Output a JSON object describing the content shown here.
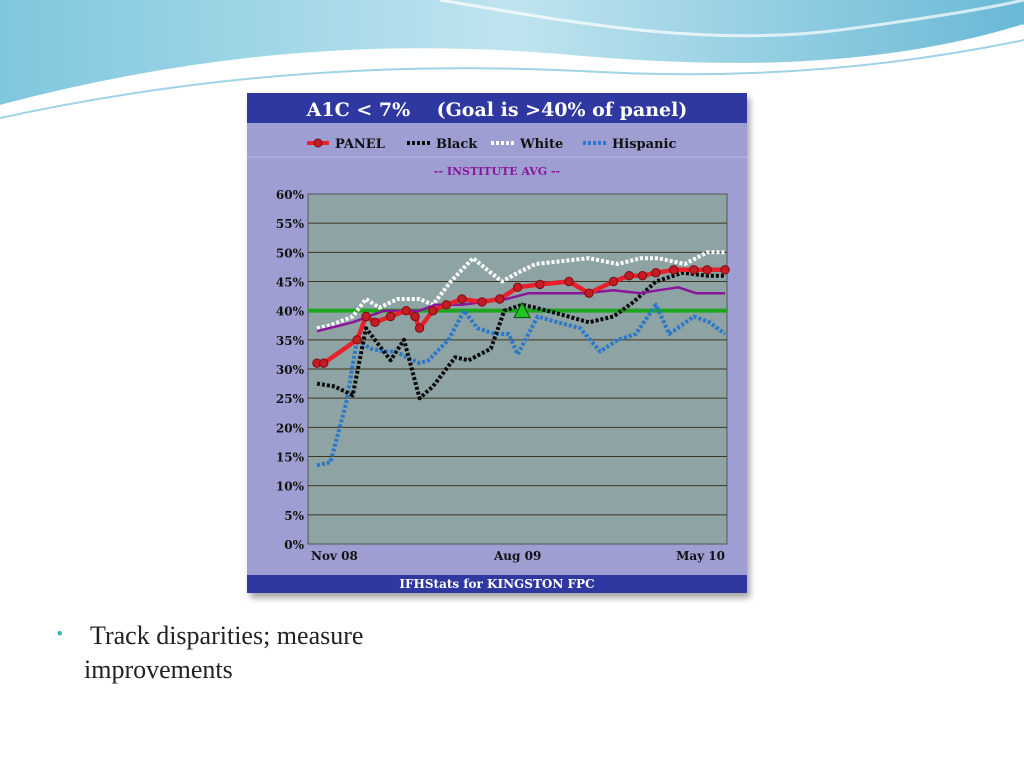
{
  "slide": {
    "bullet_marker": "•",
    "bullet_text": "Track disparities; measure improvements"
  },
  "colors": {
    "banner": "#2f38a0",
    "card_bg": "#9e9ed2",
    "plot_bg": "#8ea3a4",
    "panel": "#e8202a",
    "black": "#0a0a0a",
    "white": "#ffffff",
    "hispanic": "#2a78cc",
    "institute": "#8a159a",
    "goal": "#1ea51e",
    "accent": "#3fb2c8"
  },
  "chart_data": {
    "type": "line",
    "title": "A1C < 7%    (Goal is >40% of panel)",
    "footer": "IFHStats for KINGSTON FPC",
    "institute_label": "-- INSTITUTE AVG --",
    "xlabel": "",
    "ylabel": "",
    "ylim": [
      0,
      60
    ],
    "y_ticks": [
      "0%",
      "5%",
      "10%",
      "15%",
      "20%",
      "25%",
      "30%",
      "35%",
      "40%",
      "45%",
      "50%",
      "55%",
      "60%"
    ],
    "x_ticks": [
      "Nov 08",
      "Aug 09",
      "May 10"
    ],
    "x_tick_index": [
      0,
      9,
      18
    ],
    "x_range": [
      0,
      18.3
    ],
    "grid": true,
    "legend_position": "top",
    "goal_line": 40,
    "goal_marker": {
      "x": 9.2,
      "y": 40
    },
    "series": [
      {
        "name": "PANEL",
        "style": "solid-markers",
        "x": [
          0,
          0.3,
          1.8,
          2.2,
          2.6,
          3.3,
          4.0,
          4.4,
          4.6,
          5.2,
          5.8,
          6.5,
          7.4,
          8.2,
          9.0,
          10.0,
          11.3,
          12.2,
          13.3,
          14.0,
          14.6,
          15.2,
          16.0,
          16.9,
          17.5,
          18.3
        ],
        "y": [
          31,
          31,
          35,
          39,
          38,
          39,
          40,
          39,
          37,
          40,
          41,
          42,
          41.5,
          42,
          44,
          44.5,
          45,
          43,
          45,
          46,
          46,
          46.5,
          47,
          47,
          47,
          47
        ]
      },
      {
        "name": "Black",
        "style": "dotted",
        "x": [
          0,
          0.8,
          1.6,
          2.2,
          3.3,
          3.9,
          4.6,
          5.2,
          6.2,
          6.8,
          7.8,
          8.4,
          9.2,
          9.8,
          10.8,
          12.2,
          13.3,
          14.2,
          15.2,
          16.4,
          17.5,
          18.3
        ],
        "y": [
          27.5,
          27,
          25.5,
          37,
          31.5,
          35,
          25,
          27,
          32,
          31.5,
          33.5,
          40,
          41,
          40.5,
          39.5,
          38,
          39,
          41.5,
          45,
          46.5,
          46,
          46
        ]
      },
      {
        "name": "White",
        "style": "dotted",
        "x": [
          0,
          0.6,
          1.6,
          2.2,
          2.8,
          3.6,
          4.6,
          5.2,
          6.0,
          6.5,
          7.0,
          7.8,
          8.3,
          9.0,
          9.8,
          11.0,
          12.2,
          13.5,
          14.5,
          15.3,
          16.5,
          17.5,
          18.3
        ],
        "y": [
          37,
          37.5,
          39,
          42,
          40.5,
          42,
          42,
          41,
          45,
          47,
          49,
          46.5,
          45,
          46.5,
          48,
          48.5,
          49,
          48,
          49,
          49,
          48,
          50,
          50
        ]
      },
      {
        "name": "Hispanic",
        "style": "dotted",
        "x": [
          0,
          0.6,
          1.3,
          1.8,
          2.4,
          3.0,
          3.5,
          4.6,
          5.0,
          5.9,
          6.6,
          7.2,
          8.0,
          8.6,
          9.0,
          9.9,
          10.8,
          11.8,
          12.7,
          13.5,
          14.3,
          15.2,
          15.8,
          16.9,
          17.6,
          18.3
        ],
        "y": [
          13.5,
          14,
          24,
          35,
          33.5,
          33,
          33,
          31,
          31.5,
          35,
          40,
          37,
          36,
          36,
          32.5,
          39,
          38,
          37,
          33,
          35,
          36,
          41,
          36,
          39,
          38,
          36
        ]
      },
      {
        "name": "INSTITUTE AVG",
        "style": "thin",
        "x": [
          0,
          1.6,
          3.0,
          3.7,
          4.6,
          5.3,
          6.5,
          7.5,
          8.5,
          9.5,
          10.5,
          12.0,
          13.3,
          14.5,
          15.3,
          16.2,
          17.0,
          18.3
        ],
        "y": [
          36.5,
          38,
          40,
          40,
          40,
          41,
          41,
          41.5,
          42,
          43,
          43,
          43,
          43.5,
          43,
          43.5,
          44,
          43,
          43
        ]
      }
    ]
  }
}
